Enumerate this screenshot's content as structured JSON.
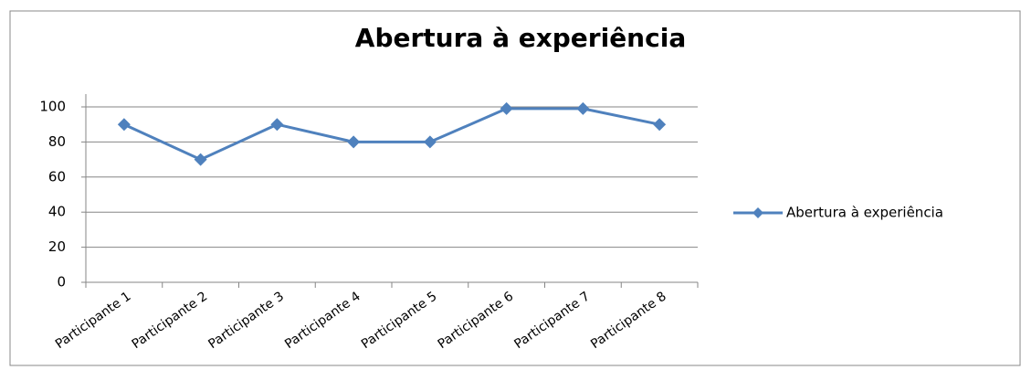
{
  "chart_data": {
    "type": "line",
    "title": "Abertura à experiência",
    "categories": [
      "Participante 1",
      "Participante 2",
      "Participante 3",
      "Participante 4",
      "Participante 5",
      "Participante 6",
      "Participante 7",
      "Participante 8"
    ],
    "series": [
      {
        "name": "Abertura à experiência",
        "color": "#4f81bd",
        "values": [
          90,
          70,
          90,
          80,
          80,
          99,
          99,
          90
        ]
      }
    ],
    "ylim": [
      0,
      100
    ],
    "yticks": [
      0,
      20,
      40,
      60,
      80,
      100
    ],
    "grid": true,
    "legend": "right"
  }
}
